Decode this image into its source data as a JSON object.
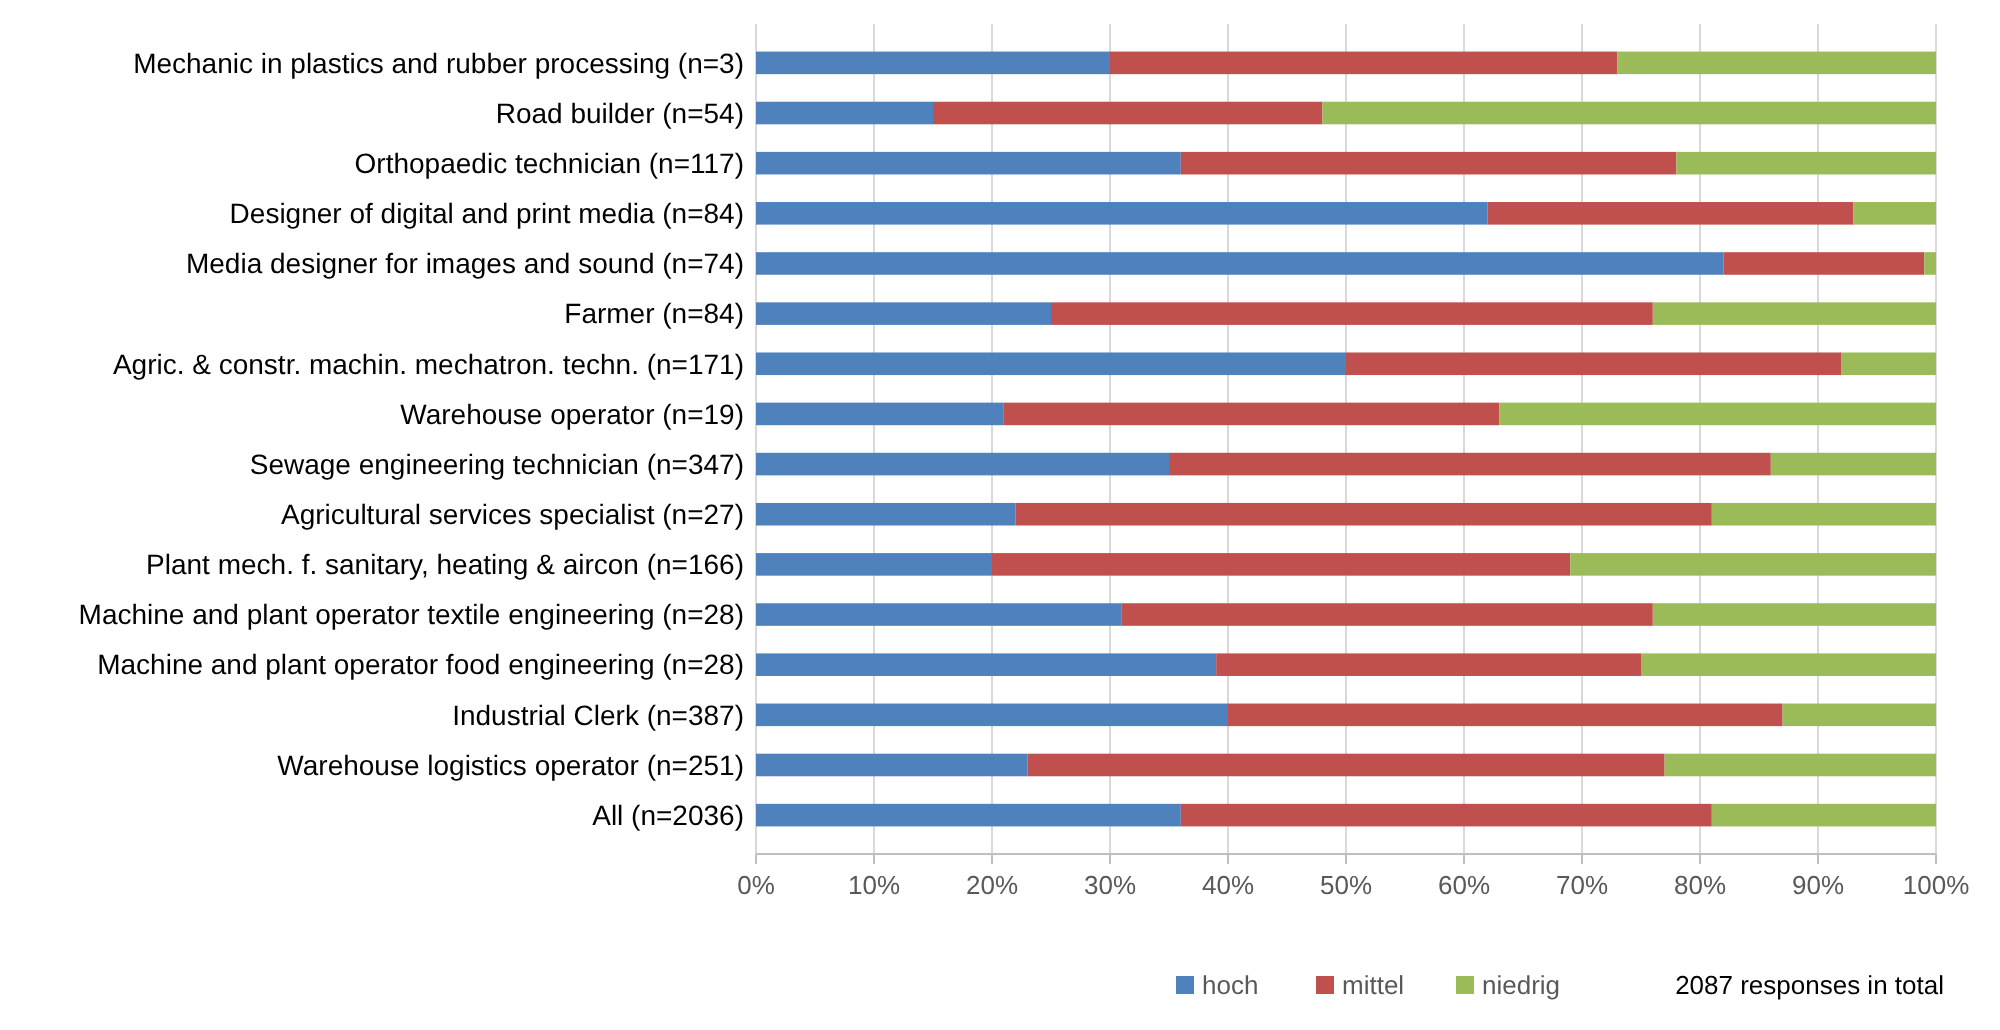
{
  "chart_data": {
    "type": "bar",
    "orientation": "horizontal",
    "stacked": true,
    "categories": [
      "Mechanic in plastics and rubber processing (n=3)",
      "Road builder (n=54)",
      "Orthopaedic technician (n=117)",
      "Designer of digital and print media (n=84)",
      "Media designer for images and sound (n=74)",
      "Farmer (n=84)",
      "Agric. & constr. machin. mechatron. techn. (n=171)",
      "Warehouse operator (n=19)",
      "Sewage engineering technician (n=347)",
      "Agricultural services specialist (n=27)",
      "Plant mech. f. sanitary, heating & aircon (n=166)",
      "Machine and plant operator textile engineering (n=28)",
      "Machine and plant operator food engineering (n=28)",
      "Industrial Clerk (n=387)",
      "Warehouse logistics operator (n=251)",
      "All (n=2036)"
    ],
    "series": [
      {
        "name": "hoch",
        "color": "#4f81bd",
        "values": [
          30,
          15,
          36,
          62,
          82,
          25,
          50,
          21,
          35,
          22,
          20,
          31,
          39,
          40,
          23,
          36
        ]
      },
      {
        "name": "mittel",
        "color": "#c0504d",
        "values": [
          43,
          33,
          42,
          31,
          17,
          51,
          42,
          42,
          51,
          59,
          49,
          45,
          36,
          47,
          54,
          45
        ]
      },
      {
        "name": "niedrig",
        "color": "#9bbb59",
        "values": [
          27,
          52,
          22,
          7,
          1,
          24,
          8,
          37,
          14,
          19,
          31,
          24,
          25,
          13,
          23,
          19
        ]
      }
    ],
    "xlim": [
      0,
      100
    ],
    "xticks": [
      {
        "value": 0,
        "label": "0%"
      },
      {
        "value": 10,
        "label": "10%"
      },
      {
        "value": 20,
        "label": "20%"
      },
      {
        "value": 30,
        "label": "30%"
      },
      {
        "value": 40,
        "label": "40%"
      },
      {
        "value": 50,
        "label": "50%"
      },
      {
        "value": 60,
        "label": "60%"
      },
      {
        "value": 70,
        "label": "70%"
      },
      {
        "value": 80,
        "label": "80%"
      },
      {
        "value": 90,
        "label": "90%"
      },
      {
        "value": 100,
        "label": "100%"
      }
    ],
    "grid": "x",
    "legend": "bottom",
    "annotations": [
      "2087 responses in total"
    ]
  }
}
